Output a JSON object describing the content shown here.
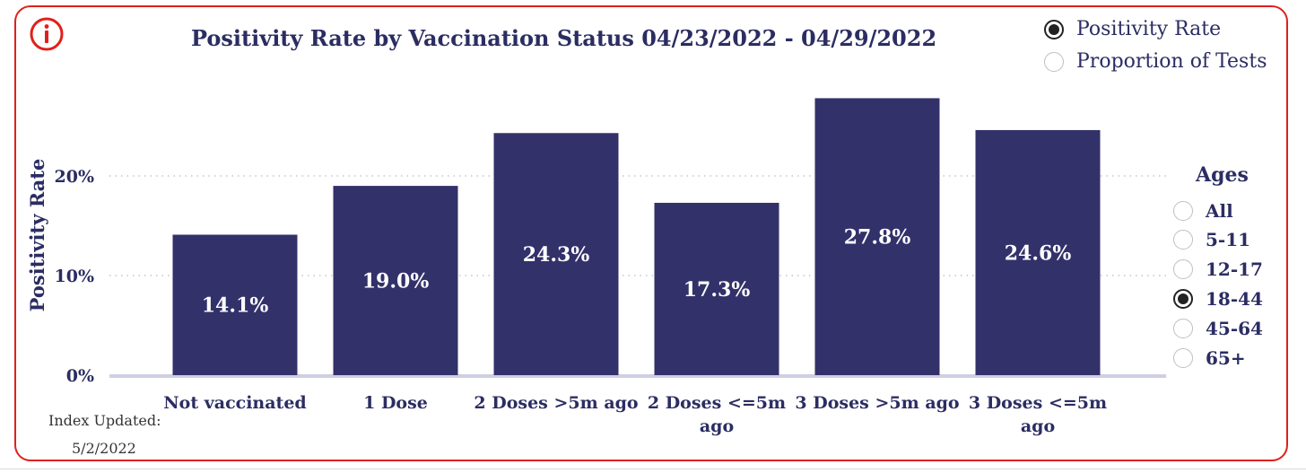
{
  "chart_data": {
    "type": "bar",
    "title": "Positivity Rate by Vaccination Status 04/23/2022 - 04/29/2022",
    "xlabel": "",
    "ylabel": "Positivity Rate",
    "ylim": [
      0,
      30
    ],
    "yticks": [
      0,
      10,
      20
    ],
    "ytick_labels": [
      "0%",
      "10%",
      "20%"
    ],
    "grid": "horizontal dotted",
    "categories": [
      [
        "Not vaccinated"
      ],
      [
        "1 Dose"
      ],
      [
        "2 Doses >5m ago"
      ],
      [
        "2 Doses <=5m",
        "ago"
      ],
      [
        "3 Doses >5m ago"
      ],
      [
        "3 Doses <=5m",
        "ago"
      ]
    ],
    "values": [
      14.1,
      19.0,
      24.3,
      17.3,
      27.8,
      24.6
    ],
    "data_labels": [
      "14.1%",
      "19.0%",
      "24.3%",
      "17.3%",
      "27.8%",
      "24.6%"
    ],
    "bar_color": "#32316a"
  },
  "metric_toggle": {
    "options": [
      "Positivity Rate",
      "Proportion of Tests"
    ],
    "selected": "Positivity Rate"
  },
  "ages": {
    "title": "Ages",
    "options": [
      "All",
      "5-11",
      "12-17",
      "18-44",
      "45-64",
      "65+"
    ],
    "selected": "18-44"
  },
  "index": {
    "label": "Index Updated:",
    "date": "5/2/2022"
  },
  "colors": {
    "frame": "#e0201b",
    "text": "#2b2d62",
    "bar": "#32316a"
  },
  "icons": {
    "info": "info-icon"
  }
}
